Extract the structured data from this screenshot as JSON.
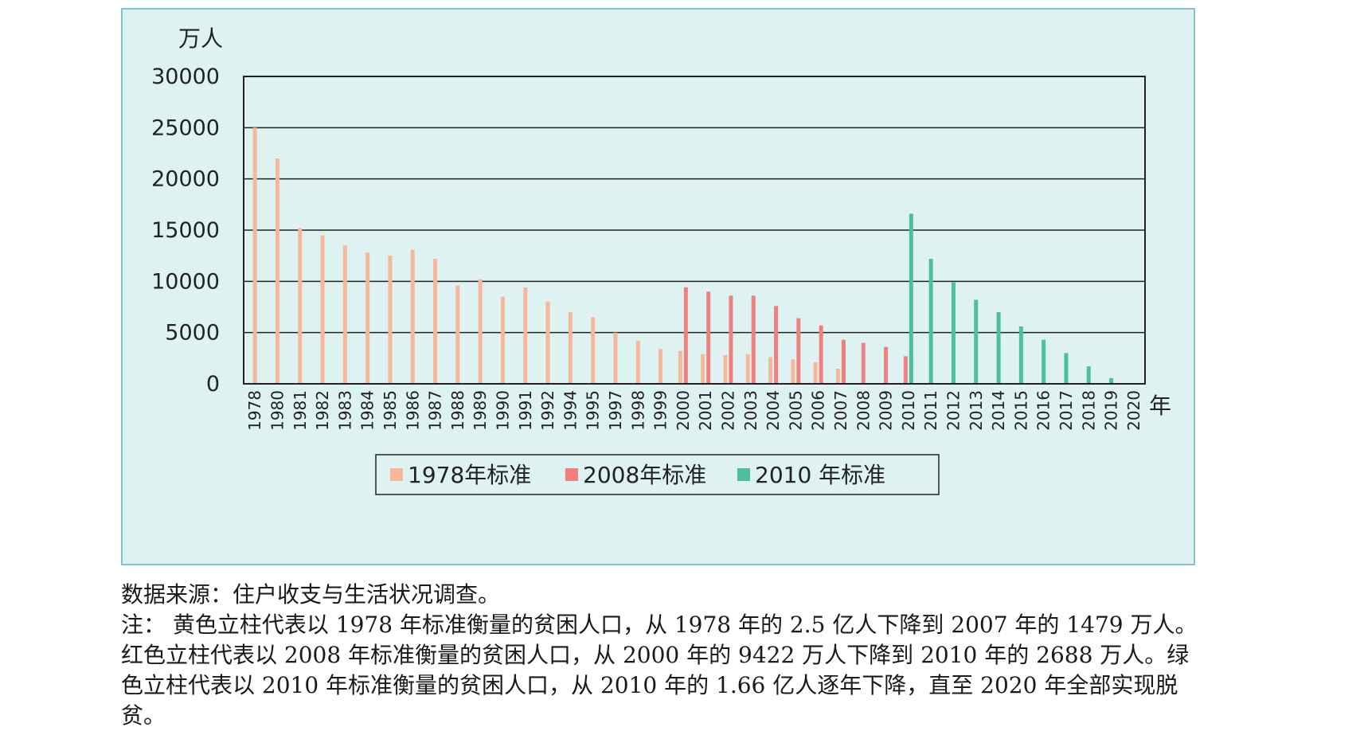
{
  "chart_data": {
    "type": "bar",
    "ylabel": "万人",
    "xlabel": "年",
    "ylim": [
      0,
      30000
    ],
    "yticks": [
      "0",
      "5000",
      "10000",
      "15000",
      "20000",
      "25000",
      "30000"
    ],
    "grid": true,
    "legend_position": "bottom-center",
    "categories": [
      "1978",
      "1980",
      "1981",
      "1982",
      "1983",
      "1984",
      "1985",
      "1986",
      "1987",
      "1988",
      "1989",
      "1990",
      "1991",
      "1992",
      "1994",
      "1995",
      "1997",
      "1998",
      "1999",
      "2000",
      "2001",
      "2002",
      "2003",
      "2004",
      "2005",
      "2006",
      "2007",
      "2008",
      "2009",
      "2010",
      "2011",
      "2012",
      "2013",
      "2014",
      "2015",
      "2016",
      "2017",
      "2018",
      "2019",
      "2020"
    ],
    "series": [
      {
        "name": "1978年标准",
        "color": "#f5b89a",
        "values": [
          25000,
          22000,
          15200,
          14500,
          13500,
          12800,
          12500,
          13100,
          12200,
          9600,
          10200,
          8500,
          9400,
          8000,
          7000,
          6500,
          5000,
          4200,
          3400,
          3200,
          2900,
          2800,
          2900,
          2600,
          2400,
          2100,
          1479,
          null,
          null,
          null,
          null,
          null,
          null,
          null,
          null,
          null,
          null,
          null,
          null,
          null
        ]
      },
      {
        "name": "2008年标准",
        "color": "#f08080",
        "values": [
          null,
          null,
          null,
          null,
          null,
          null,
          null,
          null,
          null,
          null,
          null,
          null,
          null,
          null,
          null,
          null,
          null,
          null,
          null,
          9422,
          9000,
          8600,
          8600,
          7600,
          6400,
          5700,
          4300,
          4000,
          3600,
          2688,
          null,
          null,
          null,
          null,
          null,
          null,
          null,
          null,
          null,
          null
        ]
      },
      {
        "name": "2010 年标准",
        "color": "#4dbf9f",
        "values": [
          null,
          null,
          null,
          null,
          null,
          null,
          null,
          null,
          null,
          null,
          null,
          null,
          null,
          null,
          null,
          null,
          null,
          null,
          null,
          null,
          null,
          null,
          null,
          null,
          null,
          null,
          null,
          null,
          null,
          16600,
          12200,
          9900,
          8200,
          7000,
          5600,
          4300,
          3000,
          1700,
          550,
          0
        ]
      }
    ]
  },
  "caption": {
    "source": "数据来源：住户收支与生活状况调查。",
    "note": "注：  黄色立柱代表以 1978 年标准衡量的贫困人口，从 1978 年的 2.5 亿人下降到 2007 年的 1479 万人。红色立柱代表以 2008 年标准衡量的贫困人口，从 2000 年的 9422 万人下降到 2010 年的 2688 万人。绿色立柱代表以 2010 年标准衡量的贫困人口，从 2010 年的 1.66 亿人逐年下降，直至 2020 年全部实现脱贫。"
  }
}
